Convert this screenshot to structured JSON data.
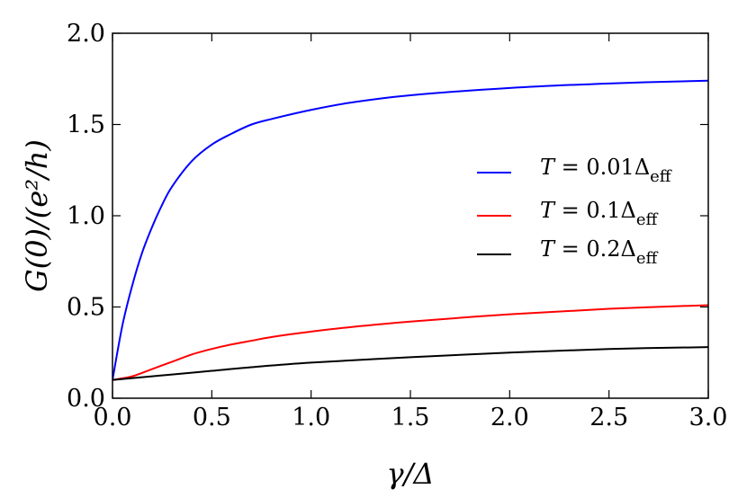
{
  "chart_data": {
    "type": "line",
    "xlabel": "γ/Δ",
    "ylabel": "G(0)/(e²/h)",
    "xlim": [
      0,
      3.0
    ],
    "ylim": [
      0,
      2.0
    ],
    "xticks": [
      "0.0",
      "0.5",
      "1.0",
      "1.5",
      "2.0",
      "2.5",
      "3.0"
    ],
    "yticks": [
      "0.0",
      "0.5",
      "1.0",
      "1.5",
      "2.0"
    ],
    "grid": false,
    "legend_position": "right",
    "series": [
      {
        "name": "T = 0.01Δeff",
        "legend": {
          "var": "T",
          "rest": " = 0.01Δ",
          "sub": "eff"
        },
        "color": "#0000ff",
        "x": [
          0,
          0.05,
          0.1,
          0.15,
          0.2,
          0.25,
          0.3,
          0.4,
          0.5,
          0.6,
          0.7,
          0.8,
          1.0,
          1.2,
          1.5,
          2.0,
          2.5,
          3.0
        ],
        "y": [
          0.1,
          0.4,
          0.62,
          0.8,
          0.94,
          1.06,
          1.16,
          1.3,
          1.39,
          1.45,
          1.5,
          1.53,
          1.58,
          1.62,
          1.66,
          1.7,
          1.725,
          1.74
        ]
      },
      {
        "name": "T = 0.1Δeff",
        "legend": {
          "var": "T",
          "rest": " = 0.1Δ",
          "sub": "eff"
        },
        "color": "#ff0000",
        "x": [
          0,
          0.1,
          0.2,
          0.3,
          0.4,
          0.5,
          0.6,
          0.7,
          0.8,
          1.0,
          1.2,
          1.5,
          2.0,
          2.5,
          3.0
        ],
        "y": [
          0.1,
          0.12,
          0.16,
          0.2,
          0.24,
          0.27,
          0.295,
          0.315,
          0.335,
          0.365,
          0.39,
          0.42,
          0.46,
          0.49,
          0.51
        ]
      },
      {
        "name": "T = 0.2Δeff",
        "legend": {
          "var": "T",
          "rest": " = 0.2Δ",
          "sub": "eff"
        },
        "color": "#000000",
        "x": [
          0,
          0.1,
          0.2,
          0.3,
          0.5,
          0.7,
          1.0,
          1.5,
          2.0,
          2.5,
          3.0
        ],
        "y": [
          0.1,
          0.11,
          0.12,
          0.13,
          0.15,
          0.17,
          0.195,
          0.225,
          0.25,
          0.27,
          0.28
        ]
      }
    ]
  }
}
